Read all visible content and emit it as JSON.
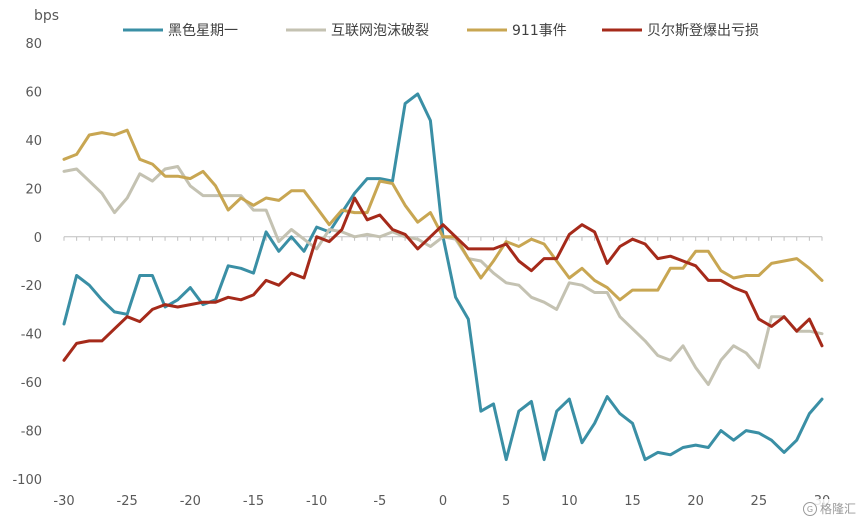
{
  "chart_data": {
    "type": "line",
    "ylabel": "bps",
    "xlim": [
      -30,
      30
    ],
    "ylim": [
      -100,
      80
    ],
    "x_ticks": [
      -30,
      -25,
      -20,
      -15,
      -10,
      -5,
      0,
      5,
      10,
      15,
      20,
      25,
      30
    ],
    "y_ticks": [
      80,
      60,
      40,
      20,
      0,
      -20,
      -40,
      -60,
      -80,
      -100
    ],
    "legend_position": "top",
    "grid": false,
    "x": [
      -30,
      -29,
      -28,
      -27,
      -26,
      -25,
      -24,
      -23,
      -22,
      -21,
      -20,
      -19,
      -18,
      -17,
      -16,
      -15,
      -14,
      -13,
      -12,
      -11,
      -10,
      -9,
      -8,
      -7,
      -6,
      -5,
      -4,
      -3,
      -2,
      -1,
      0,
      1,
      2,
      3,
      4,
      5,
      6,
      7,
      8,
      9,
      10,
      11,
      12,
      13,
      14,
      15,
      16,
      17,
      18,
      19,
      20,
      21,
      22,
      23,
      24,
      25,
      26,
      27,
      28,
      29,
      30
    ],
    "series": [
      {
        "name": "黑色星期一",
        "color": "#3a8fa5",
        "values": [
          -36,
          -16,
          -20,
          -26,
          -31,
          -32,
          -16,
          -16,
          -29,
          -26,
          -21,
          -28,
          -26,
          -12,
          -13,
          -15,
          2,
          -6,
          0,
          -6,
          4,
          2,
          10,
          18,
          24,
          24,
          23,
          55,
          59,
          48,
          0,
          -25,
          -34,
          -72,
          -69,
          -92,
          -72,
          -68,
          -92,
          -72,
          -67,
          -85,
          -77,
          -66,
          -73,
          -77,
          -92,
          -89,
          -90,
          -87,
          -86,
          -87,
          -80,
          -84,
          -80,
          -81,
          -84,
          -89,
          -84,
          -73,
          -67
        ]
      },
      {
        "name": "互联网泡沫破裂",
        "color": "#c4c2b2",
        "values": [
          27,
          28,
          23,
          18,
          10,
          16,
          26,
          23,
          28,
          29,
          21,
          17,
          17,
          17,
          17,
          11,
          11,
          -2,
          3,
          -1,
          -5,
          3,
          2,
          0,
          1,
          0,
          2,
          0,
          -1,
          -4,
          0,
          -1,
          -9,
          -10,
          -15,
          -19,
          -20,
          -25,
          -27,
          -30,
          -19,
          -20,
          -23,
          -23,
          -33,
          -38,
          -43,
          -49,
          -51,
          -45,
          -54,
          -61,
          -51,
          -45,
          -48,
          -54,
          -33,
          -33,
          -39,
          -39,
          -40
        ]
      },
      {
        "name": "911事件",
        "color": "#c8a652",
        "values": [
          32,
          34,
          42,
          43,
          42,
          44,
          32,
          30,
          25,
          25,
          24,
          27,
          21,
          11,
          16,
          13,
          16,
          15,
          19,
          19,
          12,
          5,
          11,
          10,
          10,
          23,
          22,
          13,
          6,
          10,
          0,
          0,
          -9,
          -17,
          -10,
          -2,
          -4,
          -1,
          -3,
          -10,
          -17,
          -13,
          -18,
          -21,
          -26,
          -22,
          -22,
          -22,
          -13,
          -13,
          -6,
          -6,
          -14,
          -17,
          -16,
          -16,
          -11,
          -10,
          -9,
          -13,
          -18
        ]
      },
      {
        "name": "贝尔斯登爆出亏损",
        "color": "#a52a1a",
        "values": [
          -51,
          -44,
          -43,
          -43,
          -38,
          -33,
          -35,
          -30,
          -28,
          -29,
          -28,
          -27,
          -27,
          -25,
          -26,
          -24,
          -18,
          -20,
          -15,
          -17,
          0,
          -2,
          3,
          16,
          7,
          9,
          3,
          1,
          -5,
          0,
          5,
          0,
          -5,
          -5,
          -5,
          -3,
          -10,
          -14,
          -9,
          -9,
          1,
          5,
          2,
          -11,
          -4,
          -1,
          -3,
          -9,
          -8,
          -10,
          -12,
          -18,
          -18,
          -21,
          -23,
          -34,
          -37,
          -33,
          -39,
          -34,
          -45
        ]
      }
    ]
  },
  "watermark": {
    "icon": "circle-g-logo",
    "text": "格隆汇"
  }
}
